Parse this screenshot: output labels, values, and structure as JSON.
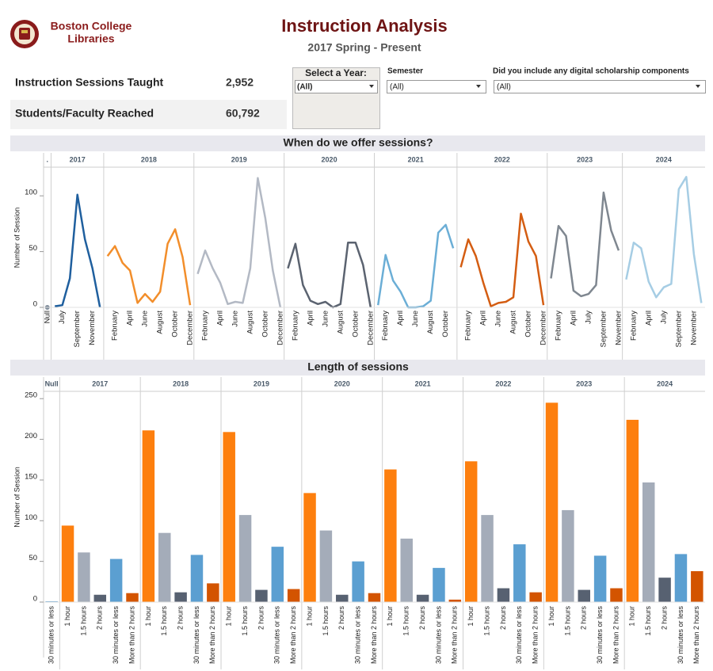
{
  "header": {
    "org_name": [
      "Boston College",
      "Libraries"
    ],
    "title": "Instruction Analysis",
    "subtitle": "2017 Spring - Present"
  },
  "kpis": [
    {
      "label": "Instruction Sessions Taught",
      "value": "2,952"
    },
    {
      "label": "Students/Faculty Reached",
      "value": "60,792"
    }
  ],
  "filters": [
    {
      "label": "Select a Year:",
      "selected": "(All)"
    },
    {
      "label": "Semester",
      "selected": "(All)"
    },
    {
      "label": "Did you include any digital scholarship components",
      "selected": "(All)"
    }
  ],
  "chart_data": [
    {
      "type": "line",
      "title": "When do we offer sessions?",
      "y_label": "Number of Session",
      "ylim": [
        0,
        125
      ],
      "yticks": [
        0,
        50,
        100
      ],
      "series": [
        {
          "name": ".",
          "color": "#7f8c9a",
          "categories": [
            "Null"
          ],
          "values": [
            0
          ]
        },
        {
          "name": "2017",
          "color": "#1f5f9e",
          "categories": [
            null,
            "July",
            null,
            "September",
            null,
            "November",
            null
          ],
          "values": [
            1,
            2,
            26,
            101,
            61,
            35,
            0
          ]
        },
        {
          "name": "2018",
          "color": "#f28e2b",
          "categories": [
            null,
            "February",
            null,
            "April",
            null,
            "June",
            null,
            "August",
            null,
            "October",
            null,
            "December"
          ],
          "values": [
            46,
            55,
            40,
            33,
            4,
            12,
            5,
            14,
            57,
            70,
            45,
            2
          ]
        },
        {
          "name": "2019",
          "color": "#b3b9c4",
          "categories": [
            null,
            "February",
            null,
            "April",
            null,
            "June",
            null,
            "August",
            null,
            "October",
            null,
            "December"
          ],
          "values": [
            30,
            51,
            35,
            22,
            3,
            5,
            4,
            35,
            116,
            80,
            33,
            0
          ]
        },
        {
          "name": "2020",
          "color": "#5b6370",
          "categories": [
            null,
            "February",
            null,
            "April",
            null,
            "June",
            null,
            "August",
            null,
            "October",
            null,
            "December"
          ],
          "values": [
            35,
            57,
            20,
            6,
            3,
            5,
            0,
            3,
            58,
            58,
            38,
            0
          ]
        },
        {
          "name": "2021",
          "color": "#6baed6",
          "categories": [
            null,
            "February",
            null,
            "April",
            null,
            "June",
            null,
            "August",
            null,
            "October",
            null
          ],
          "values": [
            2,
            47,
            24,
            14,
            0,
            0,
            1,
            6,
            67,
            74,
            53
          ]
        },
        {
          "name": "2022",
          "color": "#d45d12",
          "categories": [
            null,
            "February",
            null,
            "April",
            null,
            "June",
            null,
            "August",
            null,
            "October",
            null,
            "December"
          ],
          "values": [
            36,
            61,
            46,
            22,
            1,
            4,
            5,
            9,
            84,
            59,
            46,
            2
          ]
        },
        {
          "name": "2023",
          "color": "#7f8790",
          "categories": [
            null,
            "February",
            null,
            "April",
            null,
            "July",
            null,
            "September",
            null,
            "November"
          ],
          "values": [
            26,
            73,
            64,
            15,
            10,
            12,
            20,
            103,
            69,
            51
          ]
        },
        {
          "name": "2024",
          "color": "#a6cde4",
          "categories": [
            null,
            "February",
            null,
            "April",
            null,
            "July",
            null,
            "September",
            null,
            "November",
            null
          ],
          "values": [
            25,
            58,
            53,
            23,
            9,
            18,
            21,
            106,
            117,
            48,
            4
          ]
        }
      ]
    },
    {
      "type": "bar",
      "title": "Length of sessions",
      "y_label": "Number of Session",
      "ylim": [
        0,
        258
      ],
      "yticks": [
        0,
        50,
        100,
        150,
        200,
        250
      ],
      "series": [
        {
          "name": "Null",
          "categories": [
            "30 minutes or less"
          ],
          "colors": [
            "#5b9fd1"
          ],
          "values": [
            1
          ]
        },
        {
          "name": "2017",
          "categories": [
            "1 hour",
            "1.5 hours",
            "2 hours",
            "30 minutes or less",
            "More than 2 hours"
          ],
          "colors": [
            "#fd7f0e",
            "#a4acb9",
            "#576171",
            "#5b9fd1",
            "#d35400"
          ],
          "values": [
            94,
            61,
            9,
            53,
            11
          ]
        },
        {
          "name": "2018",
          "categories": [
            "1 hour",
            "1.5 hours",
            "2 hours",
            "30 minutes or less",
            "More than 2 hours"
          ],
          "colors": [
            "#fd7f0e",
            "#a4acb9",
            "#576171",
            "#5b9fd1",
            "#d35400"
          ],
          "values": [
            211,
            85,
            12,
            58,
            23
          ]
        },
        {
          "name": "2019",
          "categories": [
            "1 hour",
            "1.5 hours",
            "2 hours",
            "30 minutes or less",
            "More than 2 hours"
          ],
          "colors": [
            "#fd7f0e",
            "#a4acb9",
            "#576171",
            "#5b9fd1",
            "#d35400"
          ],
          "values": [
            209,
            107,
            15,
            68,
            16
          ]
        },
        {
          "name": "2020",
          "categories": [
            "1 hour",
            "1.5 hours",
            "2 hours",
            "30 minutes or less",
            "More than 2 hours"
          ],
          "colors": [
            "#fd7f0e",
            "#a4acb9",
            "#576171",
            "#5b9fd1",
            "#d35400"
          ],
          "values": [
            134,
            88,
            9,
            50,
            11
          ]
        },
        {
          "name": "2021",
          "categories": [
            "1 hour",
            "1.5 hours",
            "2 hours",
            "30 minutes or less",
            "More than 2 hours"
          ],
          "colors": [
            "#fd7f0e",
            "#a4acb9",
            "#576171",
            "#5b9fd1",
            "#d35400"
          ],
          "values": [
            163,
            78,
            9,
            42,
            3
          ]
        },
        {
          "name": "2022",
          "categories": [
            "1 hour",
            "1.5 hours",
            "2 hours",
            "30 minutes or less",
            "More than 2 hours"
          ],
          "colors": [
            "#fd7f0e",
            "#a4acb9",
            "#576171",
            "#5b9fd1",
            "#d35400"
          ],
          "values": [
            173,
            107,
            17,
            71,
            12
          ]
        },
        {
          "name": "2023",
          "categories": [
            "1 hour",
            "1.5 hours",
            "2 hours",
            "30 minutes or less",
            "More than 2 hours"
          ],
          "colors": [
            "#fd7f0e",
            "#a4acb9",
            "#576171",
            "#5b9fd1",
            "#d35400"
          ],
          "values": [
            245,
            113,
            15,
            57,
            17
          ]
        },
        {
          "name": "2024",
          "categories": [
            "1 hour",
            "1.5 hours",
            "2 hours",
            "30 minutes or less",
            "More than 2 hours"
          ],
          "colors": [
            "#fd7f0e",
            "#a4acb9",
            "#576171",
            "#5b9fd1",
            "#d35400"
          ],
          "values": [
            224,
            147,
            30,
            59,
            38
          ]
        }
      ]
    }
  ]
}
